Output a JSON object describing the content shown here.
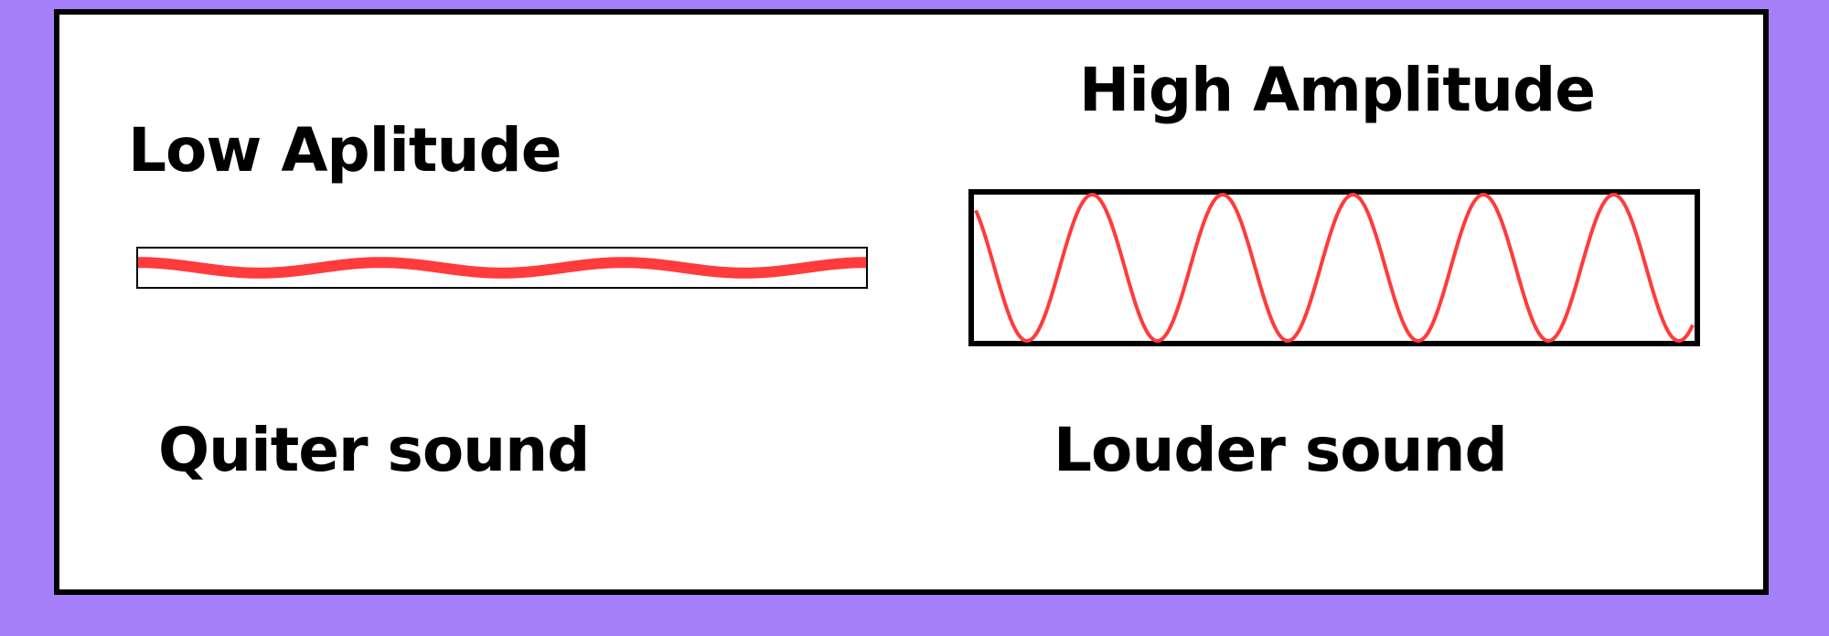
{
  "colors": {
    "background": "#a67ffb",
    "card": "#ffffff",
    "border": "#000000",
    "wave": "#ff3b3b"
  },
  "low": {
    "title": "Low Aplitude",
    "caption": "Quiter sound",
    "relative_amplitude": 0.3,
    "cycles": 3
  },
  "high": {
    "title": "High Amplitude",
    "caption": "Louder sound",
    "relative_amplitude": 1.0,
    "cycles": 5.5
  }
}
